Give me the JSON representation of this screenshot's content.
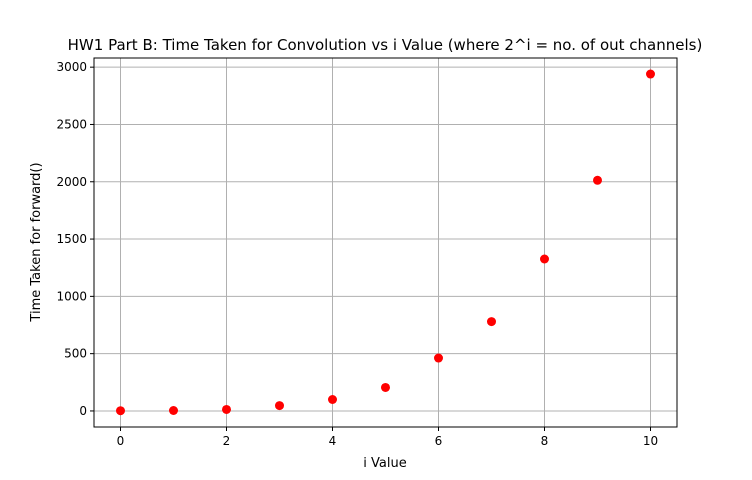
{
  "chart_data": {
    "type": "scatter",
    "title": "HW1 Part B: Time Taken for Convolution vs i Value (where 2^i = no. of out channels)",
    "xlabel": "i Value",
    "ylabel": "Time Taken for forward()",
    "xlim": [
      -0.5,
      10.5
    ],
    "ylim": [
      -140,
      3080
    ],
    "xticks": [
      0,
      2,
      4,
      6,
      8,
      10
    ],
    "yticks": [
      0,
      500,
      1000,
      1500,
      2000,
      2500,
      3000
    ],
    "grid": true,
    "marker_color": "#ff0000",
    "x": [
      0,
      1,
      2,
      3,
      4,
      5,
      6,
      7,
      8,
      9,
      10
    ],
    "y": [
      2,
      4,
      13,
      47,
      100,
      205,
      462,
      780,
      1326,
      2013,
      2940
    ]
  }
}
